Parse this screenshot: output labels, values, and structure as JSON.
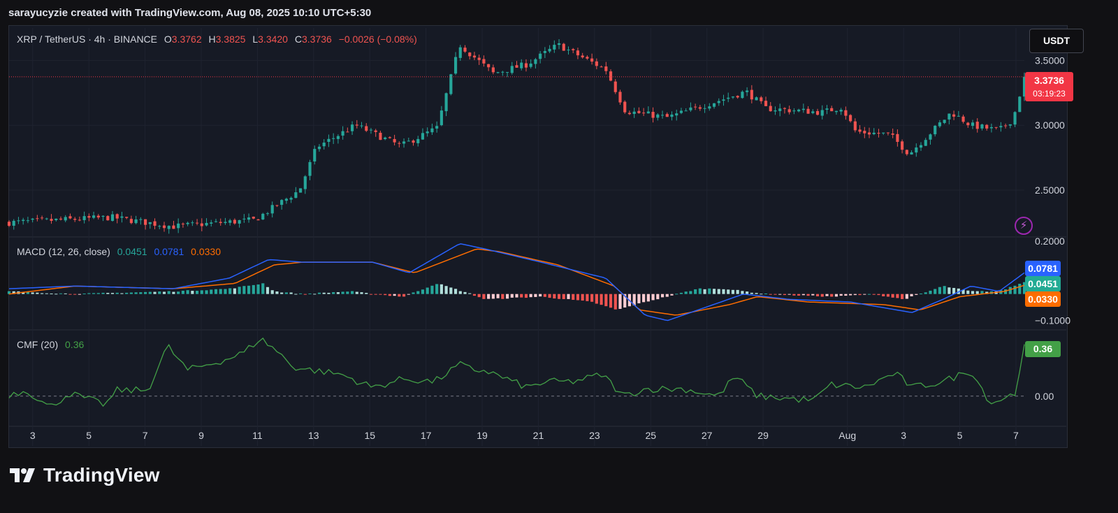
{
  "attribution": "sarayucyzie created with TradingView.com, Aug 08, 2025 10:10 UTC+5:30",
  "header": {
    "symbol": "XRP / TetherUS · 4h · BINANCE",
    "o_label": "O",
    "o_value": "3.3762",
    "h_label": "H",
    "h_value": "3.3825",
    "l_label": "L",
    "l_value": "3.3420",
    "c_label": "C",
    "c_value": "3.3736",
    "change": "−0.0026 (−0.08%)"
  },
  "currency_button": "USDT",
  "price_badge": {
    "price": "3.3736",
    "countdown": "03:19:23"
  },
  "macd": {
    "title": "MACD (12, 26, close)",
    "hist": "0.0451",
    "macd": "0.0781",
    "signal": "0.0330"
  },
  "cmf": {
    "title": "CMF (20)",
    "value": "0.36"
  },
  "brand": "TradingView",
  "icons": {
    "alert": "lightning-icon",
    "logo": "tradingview-logo-icon"
  },
  "colors": {
    "up": "#26a69a",
    "down": "#ef5350",
    "macd_line": "#2962ff",
    "signal_line": "#ff6d00",
    "cmf_line": "#43a047",
    "hist_light_up": "#b2dfdb",
    "hist_light_down": "#ffcdd2"
  },
  "chart_data": [
    {
      "type": "candlestick",
      "title": "XRP / TetherUS · 4h · BINANCE",
      "ylim": [
        2.15,
        3.75
      ],
      "y_ticks": [
        "3.5000",
        "3.0000",
        "2.5000"
      ],
      "x_ticks": [
        "3",
        "5",
        "7",
        "9",
        "11",
        "13",
        "15",
        "17",
        "19",
        "21",
        "23",
        "25",
        "27",
        "29",
        "Aug",
        "3",
        "5",
        "7"
      ],
      "last_price": 3.3736,
      "close_path": [
        [
          2.16,
          2.25
        ],
        [
          5.8,
          2.29
        ],
        [
          8.0,
          2.22
        ],
        [
          10.9,
          2.27
        ],
        [
          12.5,
          2.5
        ],
        [
          13.1,
          2.83
        ],
        [
          14.5,
          3.0
        ],
        [
          16.1,
          2.84
        ],
        [
          17.4,
          2.98
        ],
        [
          18.2,
          3.62
        ],
        [
          19.4,
          3.4
        ],
        [
          20.6,
          3.47
        ],
        [
          21.7,
          3.62
        ],
        [
          23.4,
          3.43
        ],
        [
          24.1,
          3.11
        ],
        [
          25.6,
          3.06
        ],
        [
          28.4,
          3.26
        ],
        [
          29.1,
          3.13
        ],
        [
          31.1,
          3.1
        ],
        [
          31.8,
          3.14
        ],
        [
          32.3,
          2.95
        ],
        [
          33.5,
          2.93
        ],
        [
          34.2,
          2.78
        ],
        [
          35.7,
          3.1
        ],
        [
          36.4,
          3.0
        ],
        [
          37.4,
          2.96
        ],
        [
          37.9,
          3.05
        ],
        [
          38.3,
          3.37
        ]
      ]
    },
    {
      "type": "line",
      "title": "MACD (12, 26, close)",
      "ylim": [
        -0.13,
        0.21
      ],
      "y_ticks": [
        "0.2000",
        "−0.1000"
      ],
      "series": [
        {
          "name": "MACD",
          "points": [
            [
              2.16,
              0.02
            ],
            [
              4.5,
              0.03
            ],
            [
              8.0,
              0.02
            ],
            [
              10.0,
              0.06
            ],
            [
              11.4,
              0.13
            ],
            [
              12.6,
              0.12
            ],
            [
              15.1,
              0.12
            ],
            [
              16.4,
              0.08
            ],
            [
              18.2,
              0.19
            ],
            [
              19.1,
              0.17
            ],
            [
              21.1,
              0.12
            ],
            [
              23.4,
              0.06
            ],
            [
              24.8,
              -0.08
            ],
            [
              25.6,
              -0.1
            ],
            [
              27.5,
              -0.03
            ],
            [
              28.3,
              0.0
            ],
            [
              29.9,
              -0.02
            ],
            [
              32.1,
              -0.03
            ],
            [
              34.3,
              -0.07
            ],
            [
              35.4,
              -0.02
            ],
            [
              36.4,
              0.03
            ],
            [
              37.4,
              0.01
            ],
            [
              38.3,
              0.08
            ]
          ]
        },
        {
          "name": "Signal",
          "points": [
            [
              2.16,
              0.0
            ],
            [
              4.5,
              0.03
            ],
            [
              8.0,
              0.02
            ],
            [
              10.2,
              0.04
            ],
            [
              11.6,
              0.11
            ],
            [
              12.6,
              0.12
            ],
            [
              15.1,
              0.12
            ],
            [
              16.6,
              0.08
            ],
            [
              18.8,
              0.17
            ],
            [
              19.6,
              0.16
            ],
            [
              21.7,
              0.11
            ],
            [
              23.7,
              0.03
            ],
            [
              24.6,
              -0.06
            ],
            [
              25.9,
              -0.08
            ],
            [
              27.8,
              -0.04
            ],
            [
              28.8,
              -0.01
            ],
            [
              30.6,
              -0.03
            ],
            [
              33.3,
              -0.04
            ],
            [
              34.6,
              -0.06
            ],
            [
              36.0,
              -0.01
            ],
            [
              37.6,
              0.01
            ],
            [
              38.3,
              0.033
            ]
          ]
        },
        {
          "name": "Histogram",
          "bars": [
            [
              2.16,
              0.01
            ],
            [
              4.5,
              0.0
            ],
            [
              8.0,
              0.01
            ],
            [
              10.0,
              0.02
            ],
            [
              11.2,
              0.04
            ],
            [
              11.6,
              0.01
            ],
            [
              12.6,
              0.0
            ],
            [
              14.3,
              0.01
            ],
            [
              15.1,
              0.0
            ],
            [
              16.2,
              -0.01
            ],
            [
              17.4,
              0.04
            ],
            [
              18.0,
              0.02
            ],
            [
              18.6,
              0.0
            ],
            [
              19.1,
              -0.02
            ],
            [
              21.1,
              -0.01
            ],
            [
              22.9,
              -0.03
            ],
            [
              23.8,
              -0.06
            ],
            [
              24.8,
              -0.03
            ],
            [
              26.7,
              0.02
            ],
            [
              27.6,
              0.02
            ],
            [
              29.1,
              0.0
            ],
            [
              31.5,
              -0.01
            ],
            [
              32.9,
              0.0
            ],
            [
              34.0,
              -0.02
            ],
            [
              34.9,
              0.01
            ],
            [
              35.4,
              0.03
            ],
            [
              36.4,
              0.01
            ],
            [
              37.4,
              0.01
            ],
            [
              38.3,
              0.045
            ]
          ]
        }
      ]
    },
    {
      "type": "line",
      "title": "CMF (20)",
      "y_ticks": [
        "0.00"
      ],
      "ylim": [
        -0.2,
        0.45
      ],
      "series": [
        {
          "name": "CMF",
          "points": [
            [
              2.16,
              0.01
            ],
            [
              2.8,
              0.04
            ],
            [
              3.6,
              -0.08
            ],
            [
              4.3,
              0.02
            ],
            [
              5.6,
              -0.06
            ],
            [
              6.0,
              0.04
            ],
            [
              7.1,
              0.04
            ],
            [
              7.8,
              0.35
            ],
            [
              8.5,
              0.18
            ],
            [
              9.8,
              0.25
            ],
            [
              10.5,
              0.3
            ],
            [
              11.1,
              0.4
            ],
            [
              11.6,
              0.33
            ],
            [
              12.3,
              0.2
            ],
            [
              14.0,
              0.15
            ],
            [
              15.1,
              0.06
            ],
            [
              16.2,
              0.12
            ],
            [
              17.3,
              0.1
            ],
            [
              18.2,
              0.22
            ],
            [
              18.7,
              0.18
            ],
            [
              19.1,
              0.18
            ],
            [
              20.6,
              0.06
            ],
            [
              21.3,
              0.1
            ],
            [
              22.2,
              0.1
            ],
            [
              23.3,
              0.15
            ],
            [
              24.0,
              0.0
            ],
            [
              24.8,
              0.05
            ],
            [
              26.2,
              0.05
            ],
            [
              27.4,
              0.0
            ],
            [
              28.0,
              0.14
            ],
            [
              28.8,
              0.0
            ],
            [
              30.8,
              -0.03
            ],
            [
              31.4,
              0.08
            ],
            [
              32.6,
              0.06
            ],
            [
              33.7,
              0.16
            ],
            [
              34.3,
              0.06
            ],
            [
              35.4,
              0.1
            ],
            [
              36.4,
              0.18
            ],
            [
              37.1,
              -0.05
            ],
            [
              38.0,
              0.02
            ],
            [
              38.3,
              0.36
            ]
          ]
        }
      ]
    }
  ]
}
